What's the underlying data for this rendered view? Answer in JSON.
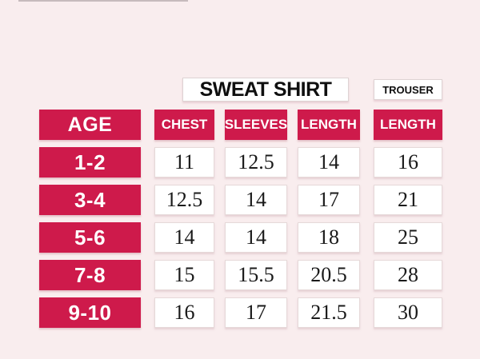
{
  "header": {
    "sweatshirt_label": "SWEAT SHIRT",
    "trouser_label": "TROUSER"
  },
  "table": {
    "column_labels": [
      "AGE",
      "CHEST",
      "SLEEVES",
      "LENGTH",
      "LENGTH"
    ]
  },
  "chart_data": {
    "type": "table",
    "title": "SWEAT SHIRT and TROUSER size chart by age",
    "column_groups": [
      {
        "label": "SWEAT SHIRT",
        "columns": [
          "CHEST",
          "SLEEVES",
          "LENGTH"
        ]
      },
      {
        "label": "TROUSER",
        "columns": [
          "LENGTH"
        ]
      }
    ],
    "columns": [
      "AGE",
      "CHEST",
      "SLEEVES",
      "LENGTH",
      "LENGTH (TROUSER)"
    ],
    "rows": [
      [
        "1-2",
        11,
        12.5,
        14,
        16
      ],
      [
        "3-4",
        12.5,
        14,
        17,
        21
      ],
      [
        "5-6",
        14,
        14,
        18,
        25
      ],
      [
        "7-8",
        15,
        15.5,
        20.5,
        28
      ],
      [
        "9-10",
        16,
        17,
        21.5,
        30
      ]
    ]
  },
  "colors": {
    "accent": "#ce1a4b",
    "background": "#f9edee",
    "cell_bg": "#ffffff",
    "cell_border": "#e6d9d9",
    "title_border": "#ded3d3",
    "title_text": "#0f0f0f",
    "header_text": "#ffffff",
    "value_text": "#1a1a1a"
  }
}
